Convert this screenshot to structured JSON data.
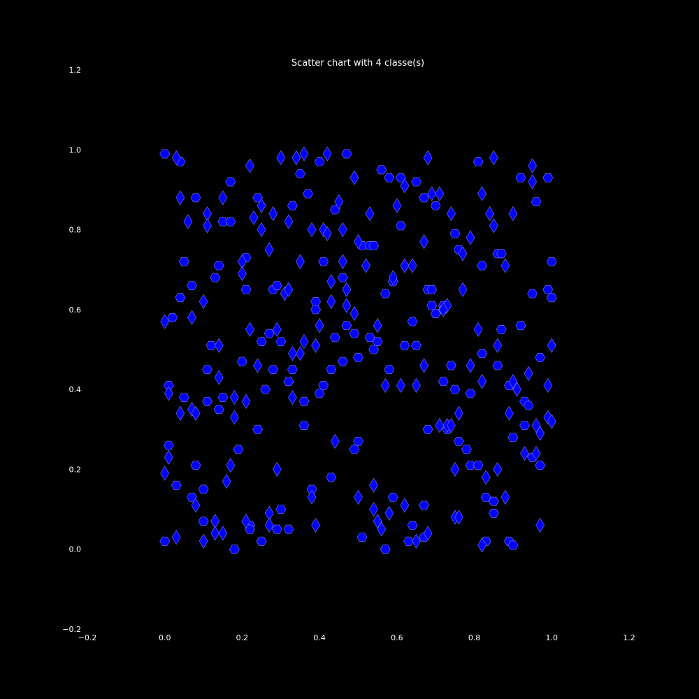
{
  "colors": {
    "background": "#000000",
    "text": "#ffffff",
    "marker_fill": "#0000ff",
    "marker_edge": "#8080ff"
  },
  "chart_data": {
    "type": "scatter",
    "title": "Scatter chart with 4 classe(s)",
    "xlabel": "",
    "ylabel": "",
    "xlim": [
      -0.2,
      1.2
    ],
    "ylim": [
      -0.2,
      1.2
    ],
    "grid": false,
    "legend": "none",
    "x_ticks": [
      "−0.2",
      "0.0",
      "0.2",
      "0.4",
      "0.6",
      "0.8",
      "1.0",
      "1.2"
    ],
    "y_ticks": [
      "−0.2",
      "0.0",
      "0.2",
      "0.4",
      "0.6",
      "0.8",
      "1.0",
      "1.2"
    ],
    "series": [
      {
        "marker": "hexagon",
        "points": [
          [
            0.0,
            0.99
          ],
          [
            0.04,
            0.97
          ],
          [
            0.17,
            0.92
          ],
          [
            0.08,
            0.88
          ],
          [
            0.24,
            0.88
          ],
          [
            0.33,
            0.86
          ],
          [
            0.15,
            0.82
          ],
          [
            0.17,
            0.82
          ],
          [
            0.05,
            0.72
          ],
          [
            0.14,
            0.71
          ],
          [
            0.21,
            0.73
          ],
          [
            0.07,
            0.66
          ],
          [
            0.13,
            0.68
          ],
          [
            0.04,
            0.63
          ],
          [
            0.21,
            0.65
          ],
          [
            0.28,
            0.65
          ],
          [
            0.29,
            0.66
          ],
          [
            0.02,
            0.58
          ],
          [
            0.12,
            0.51
          ],
          [
            0.2,
            0.47
          ],
          [
            0.25,
            0.52
          ],
          [
            0.27,
            0.54
          ],
          [
            0.3,
            0.52
          ],
          [
            0.11,
            0.45
          ],
          [
            0.28,
            0.45
          ],
          [
            0.33,
            0.45
          ],
          [
            0.32,
            0.42
          ],
          [
            0.01,
            0.41
          ],
          [
            0.05,
            0.38
          ],
          [
            0.11,
            0.37
          ],
          [
            0.15,
            0.38
          ],
          [
            0.14,
            0.35
          ],
          [
            0.26,
            0.4
          ],
          [
            0.36,
            0.37
          ],
          [
            0.24,
            0.3
          ],
          [
            0.36,
            0.31
          ],
          [
            0.19,
            0.25
          ],
          [
            0.01,
            0.26
          ],
          [
            0.08,
            0.21
          ],
          [
            0.03,
            0.16
          ],
          [
            0.1,
            0.15
          ],
          [
            0.07,
            0.13
          ],
          [
            0.1,
            0.07
          ],
          [
            0.22,
            0.06
          ],
          [
            0.22,
            0.05
          ],
          [
            0.29,
            0.05
          ],
          [
            0.3,
            0.1
          ],
          [
            0.32,
            0.05
          ],
          [
            0.25,
            0.02
          ],
          [
            0.18,
            0.0
          ],
          [
            0.0,
            0.02
          ],
          [
            0.35,
            0.94
          ],
          [
            0.4,
            0.97
          ],
          [
            0.47,
            0.99
          ],
          [
            0.37,
            0.89
          ],
          [
            0.44,
            0.85
          ],
          [
            0.56,
            0.95
          ],
          [
            0.58,
            0.93
          ],
          [
            0.61,
            0.93
          ],
          [
            0.65,
            0.92
          ],
          [
            0.61,
            0.81
          ],
          [
            0.51,
            0.76
          ],
          [
            0.53,
            0.76
          ],
          [
            0.54,
            0.76
          ],
          [
            0.41,
            0.72
          ],
          [
            0.39,
            0.62
          ],
          [
            0.39,
            0.6
          ],
          [
            0.46,
            0.68
          ],
          [
            0.57,
            0.64
          ],
          [
            0.59,
            0.67
          ],
          [
            0.64,
            0.57
          ],
          [
            0.47,
            0.56
          ],
          [
            0.49,
            0.54
          ],
          [
            0.44,
            0.53
          ],
          [
            0.53,
            0.53
          ],
          [
            0.55,
            0.52
          ],
          [
            0.54,
            0.5
          ],
          [
            0.5,
            0.48
          ],
          [
            0.46,
            0.47
          ],
          [
            0.43,
            0.45
          ],
          [
            0.41,
            0.41
          ],
          [
            0.4,
            0.39
          ],
          [
            0.62,
            0.51
          ],
          [
            0.65,
            0.51
          ],
          [
            0.58,
            0.45
          ],
          [
            0.5,
            0.27
          ],
          [
            0.49,
            0.25
          ],
          [
            0.43,
            0.18
          ],
          [
            0.38,
            0.15
          ],
          [
            0.59,
            0.13
          ],
          [
            0.67,
            0.11
          ],
          [
            0.64,
            0.06
          ],
          [
            0.51,
            0.03
          ],
          [
            0.57,
            0.0
          ],
          [
            0.63,
            0.02
          ],
          [
            0.67,
            0.03
          ],
          [
            0.7,
            0.86
          ],
          [
            0.67,
            0.88
          ],
          [
            0.81,
            0.97
          ],
          [
            0.96,
            0.87
          ],
          [
            0.92,
            0.93
          ],
          [
            0.99,
            0.93
          ],
          [
            0.75,
            0.79
          ],
          [
            0.76,
            0.75
          ],
          [
            0.82,
            0.71
          ],
          [
            0.86,
            0.74
          ],
          [
            0.87,
            0.74
          ],
          [
            1.0,
            0.72
          ],
          [
            0.68,
            0.65
          ],
          [
            0.69,
            0.65
          ],
          [
            0.69,
            0.61
          ],
          [
            0.72,
            0.61
          ],
          [
            0.7,
            0.59
          ],
          [
            0.72,
            0.6
          ],
          [
            0.95,
            0.64
          ],
          [
            0.99,
            0.65
          ],
          [
            1.0,
            0.63
          ],
          [
            0.87,
            0.55
          ],
          [
            0.92,
            0.56
          ],
          [
            0.82,
            0.49
          ],
          [
            0.86,
            0.46
          ],
          [
            0.97,
            0.48
          ],
          [
            0.74,
            0.46
          ],
          [
            0.72,
            0.42
          ],
          [
            0.75,
            0.4
          ],
          [
            0.79,
            0.39
          ],
          [
            0.89,
            0.41
          ],
          [
            0.93,
            0.37
          ],
          [
            0.94,
            0.36
          ],
          [
            0.93,
            0.31
          ],
          [
            0.68,
            0.3
          ],
          [
            0.73,
            0.3
          ],
          [
            0.76,
            0.27
          ],
          [
            0.78,
            0.25
          ],
          [
            0.9,
            0.28
          ],
          [
            0.95,
            0.23
          ],
          [
            0.97,
            0.21
          ],
          [
            0.79,
            0.21
          ],
          [
            0.81,
            0.21
          ],
          [
            0.83,
            0.13
          ],
          [
            0.85,
            0.12
          ],
          [
            0.85,
            0.09
          ],
          [
            0.83,
            0.02
          ],
          [
            0.89,
            0.02
          ],
          [
            0.9,
            0.01
          ]
        ]
      },
      {
        "marker": "diamond",
        "points": [
          [
            0.03,
            0.98
          ],
          [
            0.22,
            0.96
          ],
          [
            0.04,
            0.88
          ],
          [
            0.11,
            0.84
          ],
          [
            0.06,
            0.82
          ],
          [
            0.11,
            0.81
          ],
          [
            0.15,
            0.88
          ],
          [
            0.25,
            0.86
          ],
          [
            0.23,
            0.83
          ],
          [
            0.25,
            0.8
          ],
          [
            0.28,
            0.84
          ],
          [
            0.32,
            0.82
          ],
          [
            0.3,
            0.98
          ],
          [
            0.27,
            0.75
          ],
          [
            0.2,
            0.72
          ],
          [
            0.2,
            0.69
          ],
          [
            0.1,
            0.62
          ],
          [
            0.31,
            0.64
          ],
          [
            0.32,
            0.65
          ],
          [
            0.07,
            0.58
          ],
          [
            0.0,
            0.57
          ],
          [
            0.22,
            0.55
          ],
          [
            0.29,
            0.55
          ],
          [
            0.14,
            0.51
          ],
          [
            0.24,
            0.46
          ],
          [
            0.14,
            0.43
          ],
          [
            0.01,
            0.39
          ],
          [
            0.07,
            0.35
          ],
          [
            0.08,
            0.34
          ],
          [
            0.04,
            0.34
          ],
          [
            0.18,
            0.38
          ],
          [
            0.21,
            0.37
          ],
          [
            0.18,
            0.33
          ],
          [
            0.01,
            0.23
          ],
          [
            0.0,
            0.19
          ],
          [
            0.17,
            0.21
          ],
          [
            0.16,
            0.17
          ],
          [
            0.29,
            0.2
          ],
          [
            0.08,
            0.11
          ],
          [
            0.13,
            0.07
          ],
          [
            0.13,
            0.04
          ],
          [
            0.15,
            0.04
          ],
          [
            0.03,
            0.03
          ],
          [
            0.1,
            0.02
          ],
          [
            0.21,
            0.07
          ],
          [
            0.27,
            0.09
          ],
          [
            0.27,
            0.06
          ],
          [
            0.34,
            0.98
          ],
          [
            0.36,
            0.99
          ],
          [
            0.42,
            0.99
          ],
          [
            0.49,
            0.93
          ],
          [
            0.45,
            0.87
          ],
          [
            0.53,
            0.84
          ],
          [
            0.38,
            0.8
          ],
          [
            0.41,
            0.8
          ],
          [
            0.42,
            0.79
          ],
          [
            0.46,
            0.8
          ],
          [
            0.5,
            0.77
          ],
          [
            0.35,
            0.72
          ],
          [
            0.46,
            0.72
          ],
          [
            0.52,
            0.71
          ],
          [
            0.43,
            0.67
          ],
          [
            0.47,
            0.65
          ],
          [
            0.43,
            0.62
          ],
          [
            0.47,
            0.61
          ],
          [
            0.49,
            0.59
          ],
          [
            0.4,
            0.56
          ],
          [
            0.36,
            0.52
          ],
          [
            0.39,
            0.51
          ],
          [
            0.33,
            0.49
          ],
          [
            0.35,
            0.49
          ],
          [
            0.55,
            0.56
          ],
          [
            0.33,
            0.38
          ],
          [
            0.57,
            0.41
          ],
          [
            0.44,
            0.27
          ],
          [
            0.38,
            0.13
          ],
          [
            0.5,
            0.13
          ],
          [
            0.54,
            0.16
          ],
          [
            0.54,
            0.1
          ],
          [
            0.58,
            0.09
          ],
          [
            0.55,
            0.07
          ],
          [
            0.56,
            0.05
          ],
          [
            0.39,
            0.06
          ],
          [
            0.6,
            0.86
          ],
          [
            0.62,
            0.91
          ],
          [
            0.62,
            0.71
          ],
          [
            0.59,
            0.68
          ],
          [
            0.64,
            0.71
          ],
          [
            0.61,
            0.41
          ],
          [
            0.65,
            0.41
          ],
          [
            0.67,
            0.46
          ],
          [
            0.68,
            0.98
          ],
          [
            0.69,
            0.89
          ],
          [
            0.71,
            0.89
          ],
          [
            0.74,
            0.84
          ],
          [
            0.84,
            0.84
          ],
          [
            0.82,
            0.89
          ],
          [
            0.85,
            0.98
          ],
          [
            0.95,
            0.96
          ],
          [
            0.95,
            0.92
          ],
          [
            0.9,
            0.84
          ],
          [
            0.85,
            0.81
          ],
          [
            0.79,
            0.78
          ],
          [
            0.67,
            0.77
          ],
          [
            0.77,
            0.74
          ],
          [
            0.88,
            0.71
          ],
          [
            0.77,
            0.65
          ],
          [
            0.73,
            0.61
          ],
          [
            0.72,
            0.6
          ],
          [
            0.81,
            0.55
          ],
          [
            0.86,
            0.51
          ],
          [
            0.79,
            0.46
          ],
          [
            0.82,
            0.42
          ],
          [
            0.9,
            0.42
          ],
          [
            0.91,
            0.4
          ],
          [
            0.94,
            0.44
          ],
          [
            0.99,
            0.41
          ],
          [
            1.0,
            0.51
          ],
          [
            0.76,
            0.34
          ],
          [
            0.89,
            0.34
          ],
          [
            0.73,
            0.31
          ],
          [
            0.71,
            0.31
          ],
          [
            0.96,
            0.31
          ],
          [
            0.97,
            0.29
          ],
          [
            0.99,
            0.33
          ],
          [
            1.0,
            0.32
          ],
          [
            0.93,
            0.24
          ],
          [
            0.96,
            0.24
          ],
          [
            0.75,
            0.2
          ],
          [
            0.86,
            0.2
          ],
          [
            0.83,
            0.18
          ],
          [
            0.88,
            0.13
          ],
          [
            0.75,
            0.08
          ],
          [
            0.76,
            0.08
          ],
          [
            0.82,
            0.01
          ],
          [
            0.97,
            0.06
          ],
          [
            0.62,
            0.11
          ],
          [
            0.68,
            0.04
          ],
          [
            0.65,
            0.02
          ],
          [
            0.74,
            0.31
          ]
        ]
      }
    ]
  }
}
